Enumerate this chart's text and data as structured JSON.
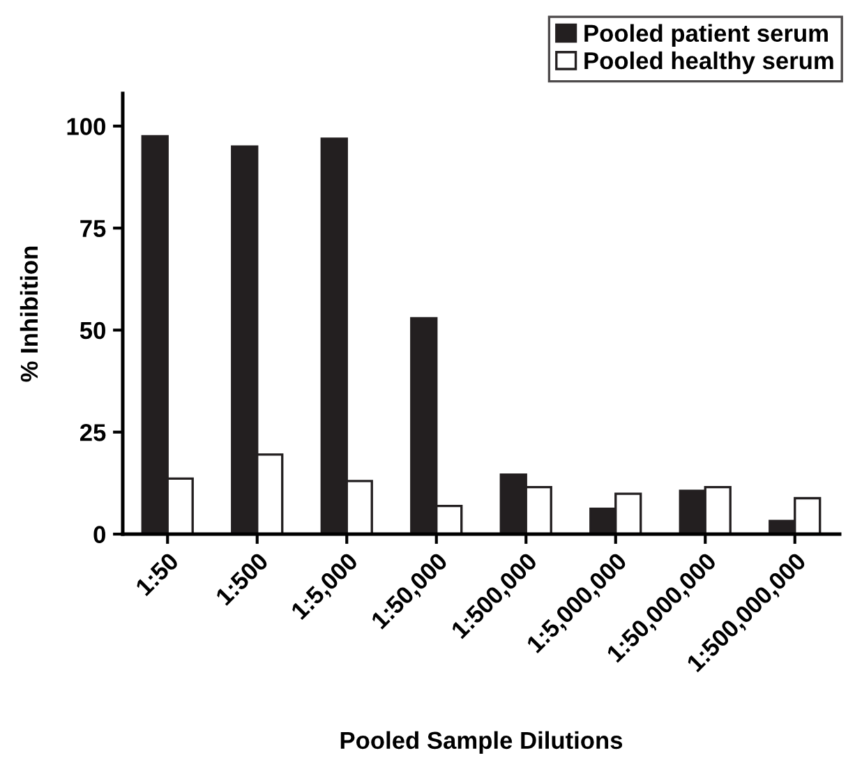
{
  "chart_data": {
    "type": "bar",
    "xlabel": "Pooled Sample Dilutions",
    "ylabel": "% Inhibition",
    "categories": [
      "1:50",
      "1:500",
      "1:5,000",
      "1:50,000",
      "1:500,000",
      "1:5,000,000",
      "1:50,000,000",
      "1:500,000,000"
    ],
    "series": [
      {
        "name": "Pooled patient serum",
        "color": "#231f20",
        "values": [
          97.5,
          95,
          96.9,
          52.9,
          14.6,
          6.2,
          10.6,
          3.2
        ]
      },
      {
        "name": "Pooled healthy serum",
        "color": "#ffffff",
        "values": [
          13.6,
          19.5,
          13,
          6.9,
          11.5,
          9.9,
          11.5,
          8.8
        ]
      }
    ],
    "ylim": [
      0,
      108
    ],
    "yticks": [
      0,
      25,
      50,
      75,
      100
    ],
    "grid": false,
    "legend": "top right"
  }
}
